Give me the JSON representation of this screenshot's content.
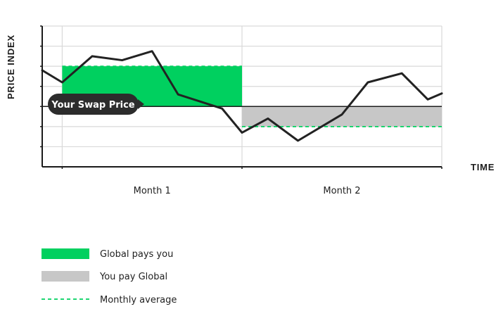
{
  "chart_data": {
    "type": "line",
    "xlabel": "TIME",
    "ylabel": "PRICE INDEX",
    "categories": [
      "Month 1",
      "Month 2"
    ],
    "grid": true,
    "legend_placement": "bottom-left",
    "annotation": "Your Swap Price",
    "swap_price": 0,
    "x_range": [
      0,
      2
    ],
    "y_range": [
      -3,
      4
    ],
    "y_ticks": [
      -3,
      -2,
      -1,
      0,
      1,
      2,
      3,
      4
    ],
    "series": [
      {
        "kind": "price-index-line",
        "color": "#222222",
        "points": [
          {
            "x": 0.0,
            "y": 1.8
          },
          {
            "x": 0.1,
            "y": 1.2
          },
          {
            "x": 0.25,
            "y": 2.5
          },
          {
            "x": 0.4,
            "y": 2.3
          },
          {
            "x": 0.55,
            "y": 2.75
          },
          {
            "x": 0.68,
            "y": 0.6
          },
          {
            "x": 0.9,
            "y": -0.1
          },
          {
            "x": 1.0,
            "y": -1.3
          },
          {
            "x": 1.13,
            "y": -0.6
          },
          {
            "x": 1.28,
            "y": -1.7
          },
          {
            "x": 1.5,
            "y": -0.4
          },
          {
            "x": 1.63,
            "y": 1.2
          },
          {
            "x": 1.8,
            "y": 1.65
          },
          {
            "x": 1.93,
            "y": 0.35
          },
          {
            "x": 2.0,
            "y": 0.65
          }
        ]
      }
    ],
    "periods": [
      {
        "label": "Month 1",
        "x_start": 0.1,
        "x_end": 1.0,
        "monthly_average": 2.0,
        "fill": "green"
      },
      {
        "label": "Month 2",
        "x_start": 1.0,
        "x_end": 2.0,
        "monthly_average": -1.0,
        "fill": "gray"
      }
    ],
    "legend": [
      {
        "kind": "green-swatch",
        "label": "Global pays you"
      },
      {
        "kind": "gray-swatch",
        "label": "You pay Global"
      },
      {
        "kind": "dashed-line",
        "label": "Monthly average"
      }
    ],
    "colors": {
      "green": "#00d05f",
      "gray": "#c7c7c7",
      "line": "#222222",
      "grid": "#d9d9d9",
      "callout_bg": "#2c2c2c",
      "callout_text": "#ffffff"
    }
  }
}
